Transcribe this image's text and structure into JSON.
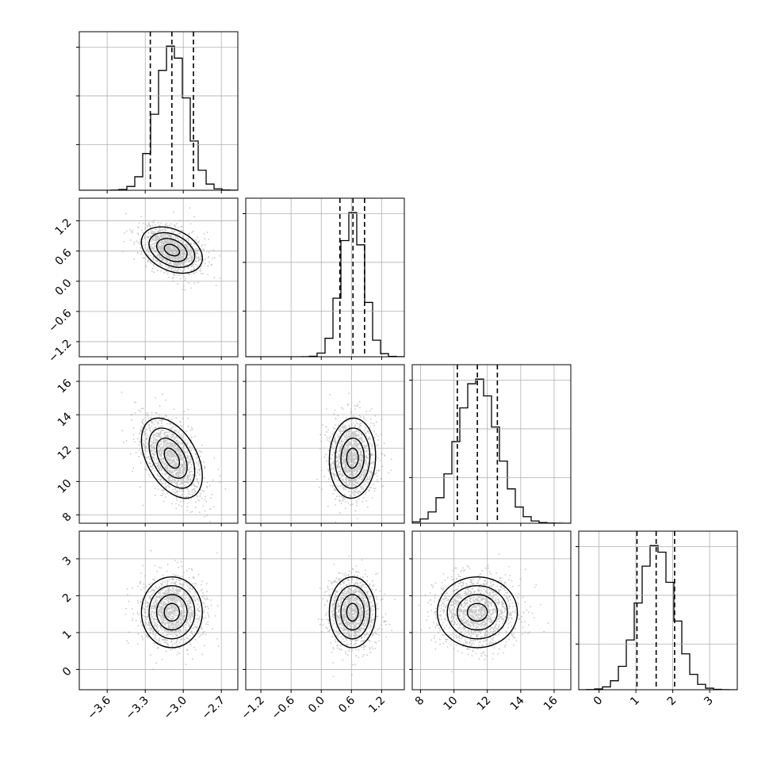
{
  "chart_data": {
    "type": "corner",
    "title": "",
    "grid": true,
    "colors": {
      "line": "#000000",
      "grid": "#b0b0b0",
      "points": "#9a9a9a"
    },
    "parameters": [
      {
        "range": [
          -3.82,
          -2.57
        ],
        "ticks": [
          -3.6,
          -3.3,
          -3.0,
          -2.7
        ],
        "tick_labels": [
          "−3.6",
          "−3.3",
          "−3.0",
          "−2.7"
        ],
        "mean": -3.09,
        "sd": 0.12,
        "quantiles": [
          -3.26,
          -3.09,
          -2.92
        ]
      },
      {
        "range": [
          -1.5,
          1.65
        ],
        "ticks": [
          -1.2,
          -0.6,
          0.0,
          0.6,
          1.2
        ],
        "tick_labels": [
          "−1.2",
          "−0.6",
          "0.0",
          "0.6",
          "1.2"
        ],
        "mean": 0.62,
        "sd": 0.23,
        "quantiles": [
          0.37,
          0.63,
          0.86
        ]
      },
      {
        "range": [
          7.5,
          17.0
        ],
        "ticks": [
          8,
          10,
          12,
          14,
          16
        ],
        "tick_labels": [
          "8",
          "10",
          "12",
          "14",
          "16"
        ],
        "mean": 11.4,
        "sd": 1.2,
        "quantiles": [
          10.2,
          11.4,
          12.6
        ]
      },
      {
        "range": [
          -0.55,
          3.75
        ],
        "ticks": [
          0,
          1,
          2,
          3
        ],
        "tick_labels": [
          "0",
          "1",
          "2",
          "3"
        ],
        "mean": 1.55,
        "sd": 0.48,
        "quantiles": [
          1.03,
          1.55,
          2.05
        ]
      }
    ],
    "correlations": {
      "1-0": -0.35,
      "2-0": -0.45,
      "2-1": 0.05,
      "3-0": 0.0,
      "3-1": 0.0,
      "3-2": 0.0
    },
    "histogram_bins": 20,
    "contour_levels": [
      0.5,
      1.0,
      1.5,
      2.0
    ]
  }
}
